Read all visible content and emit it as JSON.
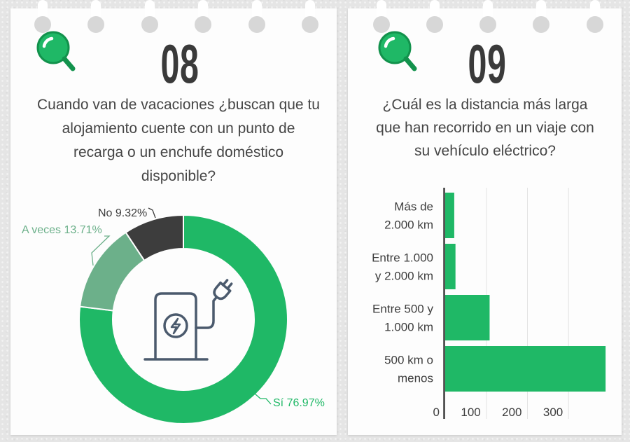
{
  "colors": {
    "accent": "#1fb866",
    "accent_dark": "#12924c",
    "text": "#454545",
    "number": "#3a3a3a",
    "icon": "#4b5a6d",
    "background": "#e5e5e5"
  },
  "icons": {
    "card_icon": "magnifier-icon",
    "center_icon": "charging-station-icon"
  },
  "cards": [
    {
      "number": "08",
      "question": "Cuando van de vacaciones ¿buscan que tu\nalojamiento cuente con un punto de\nrecarga o un enchufe doméstico\ndisponible?"
    },
    {
      "number": "09",
      "question": "¿Cuál es la distancia más larga\nque han recorrido en un viaje con\nsu vehículo eléctrico?"
    }
  ],
  "chart_data": [
    {
      "type": "pie",
      "style": "donut",
      "categories": [
        "Sí",
        "A veces",
        "No"
      ],
      "values": [
        76.97,
        13.71,
        9.32
      ],
      "unit": "%",
      "colors": [
        "#1fb866",
        "#6cb08a",
        "#3d3d3d"
      ],
      "start": "top",
      "direction": "clockwise",
      "legend": "none"
    },
    {
      "type": "bar",
      "orientation": "horizontal",
      "categories": [
        "Más de\n2.000 km",
        "Entre 1.000\ny 2.000 km",
        "Entre 500 y\n1.000 km",
        "500 km o\nmenos"
      ],
      "values": [
        22,
        25,
        108,
        390
      ],
      "xlim": [
        0,
        400
      ],
      "x_ticks": [
        0,
        100,
        200,
        300
      ],
      "color": "#1fb866",
      "grid": true,
      "legend": "none"
    }
  ]
}
